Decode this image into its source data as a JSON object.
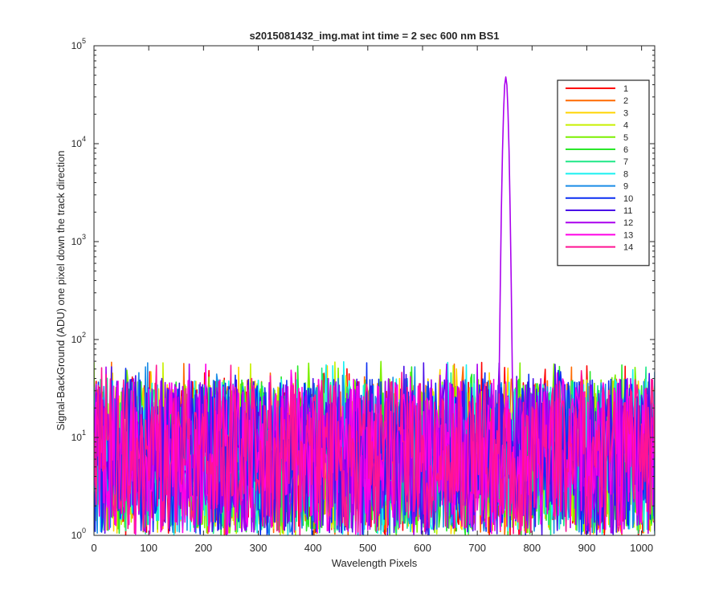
{
  "chart_data": {
    "type": "line",
    "title": "s2015081432_img.mat int time = 2 sec  600 nm BS1",
    "xlabel": "Wavelength Pixels",
    "ylabel": "Signal-BackGround (ADU) one pixel down the track direction",
    "xlim": [
      0,
      1024
    ],
    "ylim": [
      1,
      100000
    ],
    "yscale": "log",
    "xticks": [
      0,
      100,
      200,
      300,
      400,
      500,
      600,
      700,
      800,
      900,
      1000
    ],
    "yticks": [
      {
        "base": "10",
        "exp": "0"
      },
      {
        "base": "10",
        "exp": "1"
      },
      {
        "base": "10",
        "exp": "2"
      },
      {
        "base": "10",
        "exp": "3"
      },
      {
        "base": "10",
        "exp": "4"
      },
      {
        "base": "10",
        "exp": "5"
      }
    ],
    "grid": false,
    "legend_position": "top-right",
    "noise": {
      "typical_range": [
        1,
        40
      ],
      "occasional_max": 60
    },
    "peak": {
      "x": 752,
      "y": 48000,
      "series": "12"
    },
    "series": [
      {
        "name": "1",
        "color": "#ff0000"
      },
      {
        "name": "2",
        "color": "#ff6a00"
      },
      {
        "name": "3",
        "color": "#ffd400"
      },
      {
        "name": "4",
        "color": "#c8f000"
      },
      {
        "name": "5",
        "color": "#7cf000"
      },
      {
        "name": "6",
        "color": "#2ae82a"
      },
      {
        "name": "7",
        "color": "#1ee887"
      },
      {
        "name": "8",
        "color": "#18f0f0"
      },
      {
        "name": "9",
        "color": "#1a8ce6"
      },
      {
        "name": "10",
        "color": "#0a2ef2"
      },
      {
        "name": "11",
        "color": "#4a10e8"
      },
      {
        "name": "12",
        "color": "#aa00ee"
      },
      {
        "name": "13",
        "color": "#ff00e6"
      },
      {
        "name": "14",
        "color": "#ff1493"
      }
    ]
  }
}
